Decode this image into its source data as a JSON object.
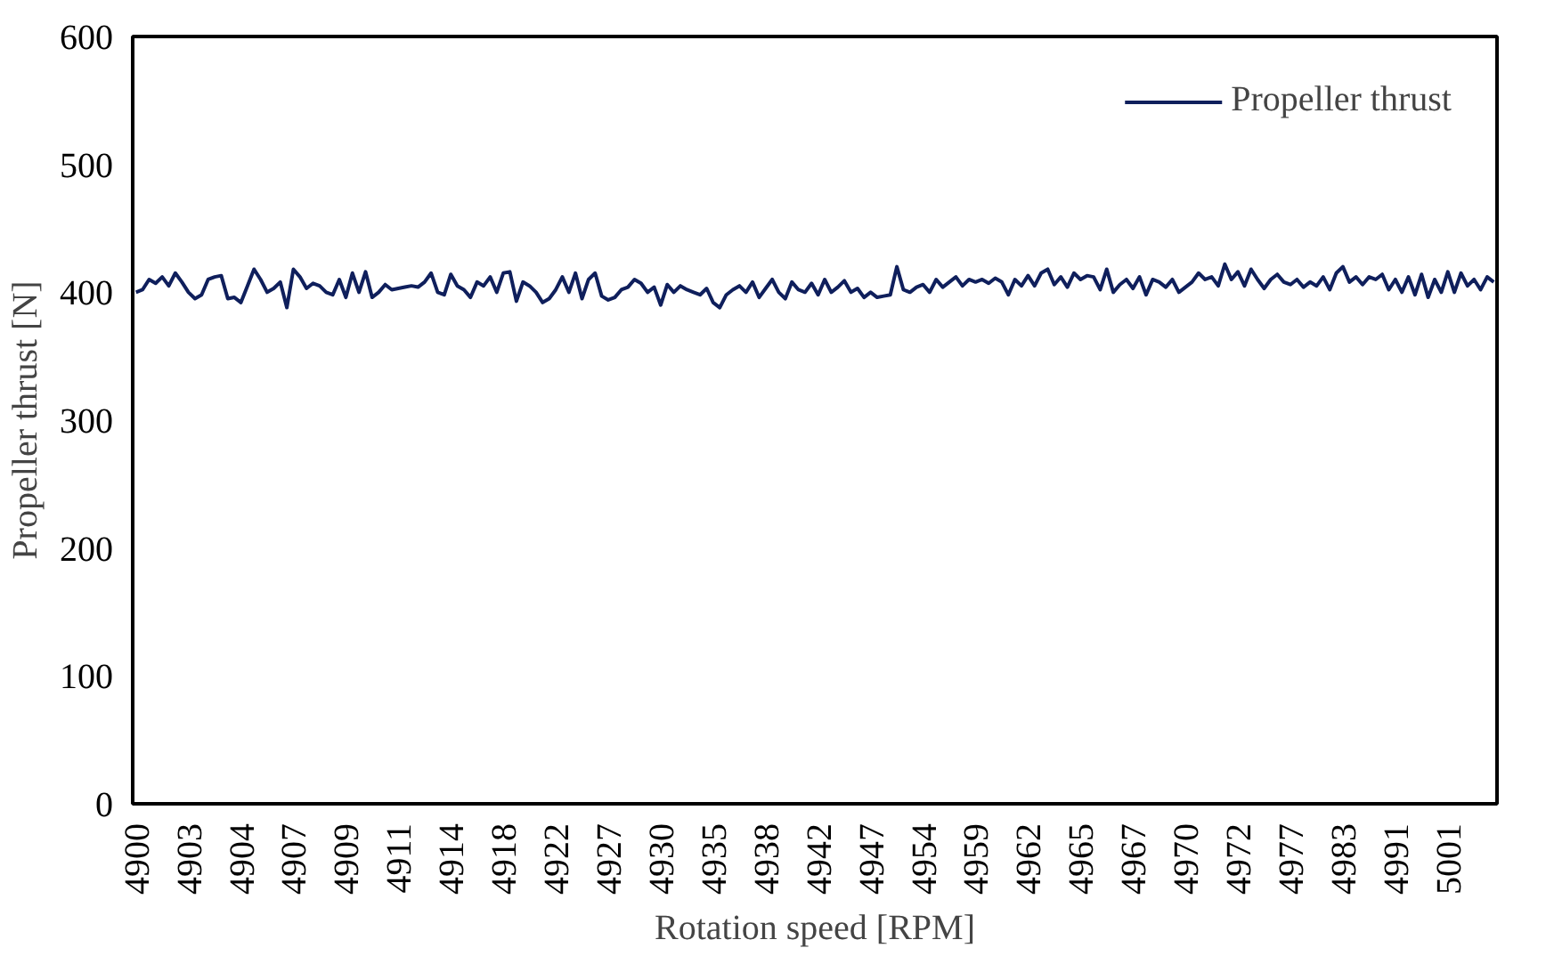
{
  "chart_data": {
    "type": "line",
    "xlabel": "Rotation speed [RPM]",
    "ylabel": "Propeller thrust [N]",
    "categories": [
      "4900",
      null,
      null,
      null,
      null,
      null,
      null,
      null,
      "4903",
      null,
      null,
      null,
      null,
      null,
      null,
      null,
      "4904",
      null,
      null,
      null,
      null,
      null,
      null,
      null,
      "4907",
      null,
      null,
      null,
      null,
      null,
      null,
      null,
      "4909",
      null,
      null,
      null,
      null,
      null,
      null,
      null,
      "4911",
      null,
      null,
      null,
      null,
      null,
      null,
      null,
      "4914",
      null,
      null,
      null,
      null,
      null,
      null,
      null,
      "4918",
      null,
      null,
      null,
      null,
      null,
      null,
      null,
      "4922",
      null,
      null,
      null,
      null,
      null,
      null,
      null,
      "4927",
      null,
      null,
      null,
      null,
      null,
      null,
      null,
      "4930",
      null,
      null,
      null,
      null,
      null,
      null,
      null,
      "4935",
      null,
      null,
      null,
      null,
      null,
      null,
      null,
      "4938",
      null,
      null,
      null,
      null,
      null,
      null,
      null,
      "4942",
      null,
      null,
      null,
      null,
      null,
      null,
      null,
      "4947",
      null,
      null,
      null,
      null,
      null,
      null,
      null,
      "4954",
      null,
      null,
      null,
      null,
      null,
      null,
      null,
      "4959",
      null,
      null,
      null,
      null,
      null,
      null,
      null,
      "4962",
      null,
      null,
      null,
      null,
      null,
      null,
      null,
      "4965",
      null,
      null,
      null,
      null,
      null,
      null,
      null,
      "4967",
      null,
      null,
      null,
      null,
      null,
      null,
      null,
      "4970",
      null,
      null,
      null,
      null,
      null,
      null,
      null,
      "4972",
      null,
      null,
      null,
      null,
      null,
      null,
      null,
      "4977",
      null,
      null,
      null,
      null,
      null,
      null,
      null,
      "4983",
      null,
      null,
      null,
      null,
      null,
      null,
      null,
      "4991",
      null,
      null,
      null,
      null,
      null,
      null,
      null,
      "5001",
      null,
      null,
      null,
      null,
      null,
      null,
      null
    ],
    "series": [
      {
        "name": "Propeller thrust",
        "color": "#0f1f5c",
        "values": [
          400,
          402,
          410,
          407,
          412,
          405,
          415,
          408,
          400,
          395,
          398,
          410,
          412,
          413,
          395,
          396,
          392,
          405,
          418,
          410,
          400,
          403,
          408,
          388,
          418,
          412,
          403,
          407,
          405,
          400,
          398,
          410,
          396,
          415,
          400,
          416,
          396,
          400,
          406,
          402,
          403,
          404,
          405,
          404,
          408,
          415,
          400,
          398,
          414,
          405,
          402,
          396,
          408,
          405,
          412,
          400,
          415,
          416,
          393,
          408,
          405,
          400,
          392,
          395,
          402,
          412,
          400,
          415,
          395,
          410,
          415,
          397,
          394,
          396,
          402,
          404,
          410,
          407,
          400,
          404,
          390,
          406,
          400,
          405,
          402,
          400,
          398,
          403,
          392,
          388,
          398,
          402,
          405,
          400,
          408,
          396,
          403,
          410,
          400,
          395,
          408,
          402,
          400,
          407,
          398,
          410,
          400,
          404,
          409,
          400,
          403,
          396,
          400,
          396,
          397,
          398,
          420,
          402,
          400,
          404,
          406,
          400,
          410,
          404,
          408,
          412,
          405,
          410,
          408,
          410,
          407,
          411,
          408,
          398,
          410,
          405,
          413,
          405,
          415,
          418,
          406,
          412,
          404,
          415,
          410,
          413,
          412,
          402,
          418,
          400,
          406,
          410,
          403,
          412,
          398,
          410,
          408,
          404,
          410,
          400,
          404,
          408,
          415,
          410,
          412,
          405,
          422,
          410,
          416,
          405,
          418,
          410,
          403,
          410,
          414,
          408,
          406,
          410,
          404,
          408,
          405,
          412,
          402,
          415,
          420,
          408,
          412,
          406,
          412,
          410,
          414,
          402,
          410,
          400,
          412,
          398,
          414,
          396,
          410,
          400,
          416,
          400,
          415,
          405,
          410,
          402,
          412,
          408
        ]
      }
    ],
    "ylim": [
      0,
      600
    ],
    "yticks": [
      0,
      100,
      200,
      300,
      400,
      500,
      600
    ],
    "grid": false,
    "legend": "top right",
    "marker": "none",
    "line_style": "solid"
  }
}
